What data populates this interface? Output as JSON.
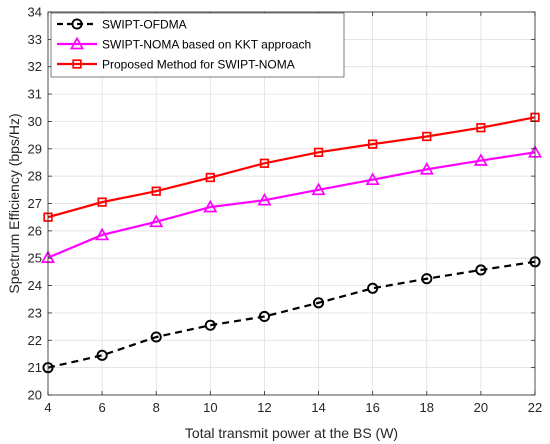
{
  "chart_data": {
    "type": "line",
    "title": "",
    "xlabel": "Total transmit power at the BS (W)",
    "ylabel": "Spectrum Efficiency (bps/Hz)",
    "xlim": [
      4,
      22
    ],
    "ylim": [
      20,
      34
    ],
    "xticks": [
      4,
      6,
      8,
      10,
      12,
      14,
      16,
      18,
      20,
      22
    ],
    "yticks": [
      20,
      21,
      22,
      23,
      24,
      25,
      26,
      27,
      28,
      29,
      30,
      31,
      32,
      33,
      34
    ],
    "grid": true,
    "legend_position": "top-left",
    "x": [
      4,
      6,
      8,
      10,
      12,
      14,
      16,
      18,
      20,
      22
    ],
    "series": [
      {
        "name": "SWIPT-OFDMA",
        "values": [
          21.0,
          21.45,
          22.12,
          22.55,
          22.87,
          23.37,
          23.9,
          24.25,
          24.57,
          24.87
        ],
        "color": "#000000",
        "line_style": "dashed",
        "marker": "circle"
      },
      {
        "name": "SWIPT-NOMA based on KKT approach",
        "values": [
          25.02,
          25.85,
          26.33,
          26.87,
          27.12,
          27.5,
          27.87,
          28.25,
          28.57,
          28.87
        ],
        "color": "#ff00ff",
        "line_style": "solid",
        "marker": "triangle"
      },
      {
        "name": "Proposed Method for SWIPT-NOMA",
        "values": [
          26.5,
          27.05,
          27.45,
          27.95,
          28.47,
          28.87,
          29.17,
          29.45,
          29.77,
          30.15
        ],
        "color": "#ff0000",
        "line_style": "solid",
        "marker": "square"
      }
    ]
  }
}
